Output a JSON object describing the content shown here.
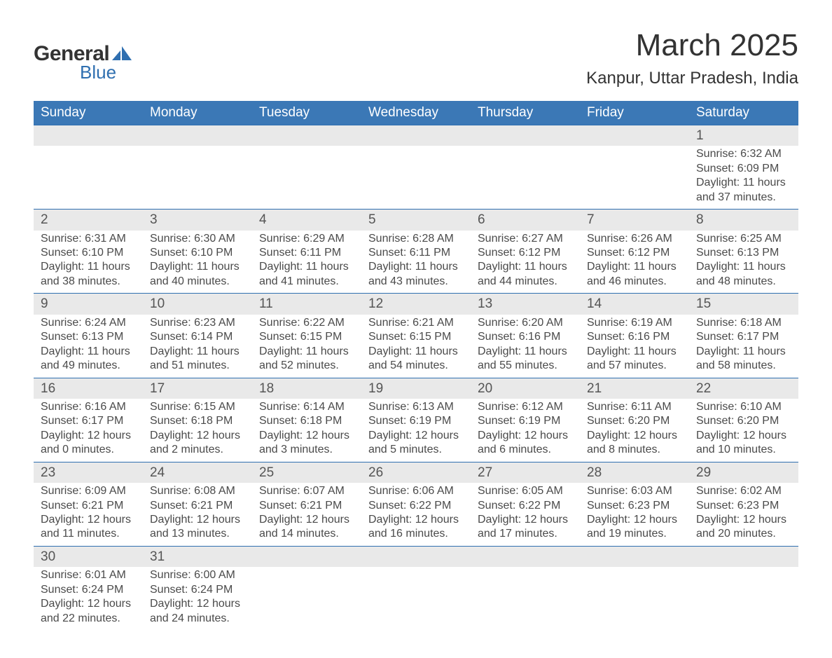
{
  "logo": {
    "text1": "General",
    "text2": "Blue",
    "accent_color": "#2f6fb0"
  },
  "title": "March 2025",
  "location": "Kanpur, Uttar Pradesh, India",
  "colors": {
    "header_bg": "#3b78b6",
    "header_text": "#ffffff",
    "daynum_bg": "#e9e9e9",
    "row_divider": "#2f6fb0",
    "text": "#4a4a4a",
    "title_text": "#333333"
  },
  "day_headers": [
    "Sunday",
    "Monday",
    "Tuesday",
    "Wednesday",
    "Thursday",
    "Friday",
    "Saturday"
  ],
  "labels": {
    "sunrise": "Sunrise:",
    "sunset": "Sunset:",
    "daylight": "Daylight:"
  },
  "weeks": [
    [
      null,
      null,
      null,
      null,
      null,
      null,
      {
        "n": "1",
        "sr": "6:32 AM",
        "ss": "6:09 PM",
        "dl": "11 hours and 37 minutes."
      }
    ],
    [
      {
        "n": "2",
        "sr": "6:31 AM",
        "ss": "6:10 PM",
        "dl": "11 hours and 38 minutes."
      },
      {
        "n": "3",
        "sr": "6:30 AM",
        "ss": "6:10 PM",
        "dl": "11 hours and 40 minutes."
      },
      {
        "n": "4",
        "sr": "6:29 AM",
        "ss": "6:11 PM",
        "dl": "11 hours and 41 minutes."
      },
      {
        "n": "5",
        "sr": "6:28 AM",
        "ss": "6:11 PM",
        "dl": "11 hours and 43 minutes."
      },
      {
        "n": "6",
        "sr": "6:27 AM",
        "ss": "6:12 PM",
        "dl": "11 hours and 44 minutes."
      },
      {
        "n": "7",
        "sr": "6:26 AM",
        "ss": "6:12 PM",
        "dl": "11 hours and 46 minutes."
      },
      {
        "n": "8",
        "sr": "6:25 AM",
        "ss": "6:13 PM",
        "dl": "11 hours and 48 minutes."
      }
    ],
    [
      {
        "n": "9",
        "sr": "6:24 AM",
        "ss": "6:13 PM",
        "dl": "11 hours and 49 minutes."
      },
      {
        "n": "10",
        "sr": "6:23 AM",
        "ss": "6:14 PM",
        "dl": "11 hours and 51 minutes."
      },
      {
        "n": "11",
        "sr": "6:22 AM",
        "ss": "6:15 PM",
        "dl": "11 hours and 52 minutes."
      },
      {
        "n": "12",
        "sr": "6:21 AM",
        "ss": "6:15 PM",
        "dl": "11 hours and 54 minutes."
      },
      {
        "n": "13",
        "sr": "6:20 AM",
        "ss": "6:16 PM",
        "dl": "11 hours and 55 minutes."
      },
      {
        "n": "14",
        "sr": "6:19 AM",
        "ss": "6:16 PM",
        "dl": "11 hours and 57 minutes."
      },
      {
        "n": "15",
        "sr": "6:18 AM",
        "ss": "6:17 PM",
        "dl": "11 hours and 58 minutes."
      }
    ],
    [
      {
        "n": "16",
        "sr": "6:16 AM",
        "ss": "6:17 PM",
        "dl": "12 hours and 0 minutes."
      },
      {
        "n": "17",
        "sr": "6:15 AM",
        "ss": "6:18 PM",
        "dl": "12 hours and 2 minutes."
      },
      {
        "n": "18",
        "sr": "6:14 AM",
        "ss": "6:18 PM",
        "dl": "12 hours and 3 minutes."
      },
      {
        "n": "19",
        "sr": "6:13 AM",
        "ss": "6:19 PM",
        "dl": "12 hours and 5 minutes."
      },
      {
        "n": "20",
        "sr": "6:12 AM",
        "ss": "6:19 PM",
        "dl": "12 hours and 6 minutes."
      },
      {
        "n": "21",
        "sr": "6:11 AM",
        "ss": "6:20 PM",
        "dl": "12 hours and 8 minutes."
      },
      {
        "n": "22",
        "sr": "6:10 AM",
        "ss": "6:20 PM",
        "dl": "12 hours and 10 minutes."
      }
    ],
    [
      {
        "n": "23",
        "sr": "6:09 AM",
        "ss": "6:21 PM",
        "dl": "12 hours and 11 minutes."
      },
      {
        "n": "24",
        "sr": "6:08 AM",
        "ss": "6:21 PM",
        "dl": "12 hours and 13 minutes."
      },
      {
        "n": "25",
        "sr": "6:07 AM",
        "ss": "6:21 PM",
        "dl": "12 hours and 14 minutes."
      },
      {
        "n": "26",
        "sr": "6:06 AM",
        "ss": "6:22 PM",
        "dl": "12 hours and 16 minutes."
      },
      {
        "n": "27",
        "sr": "6:05 AM",
        "ss": "6:22 PM",
        "dl": "12 hours and 17 minutes."
      },
      {
        "n": "28",
        "sr": "6:03 AM",
        "ss": "6:23 PM",
        "dl": "12 hours and 19 minutes."
      },
      {
        "n": "29",
        "sr": "6:02 AM",
        "ss": "6:23 PM",
        "dl": "12 hours and 20 minutes."
      }
    ],
    [
      {
        "n": "30",
        "sr": "6:01 AM",
        "ss": "6:24 PM",
        "dl": "12 hours and 22 minutes."
      },
      {
        "n": "31",
        "sr": "6:00 AM",
        "ss": "6:24 PM",
        "dl": "12 hours and 24 minutes."
      },
      null,
      null,
      null,
      null,
      null
    ]
  ]
}
